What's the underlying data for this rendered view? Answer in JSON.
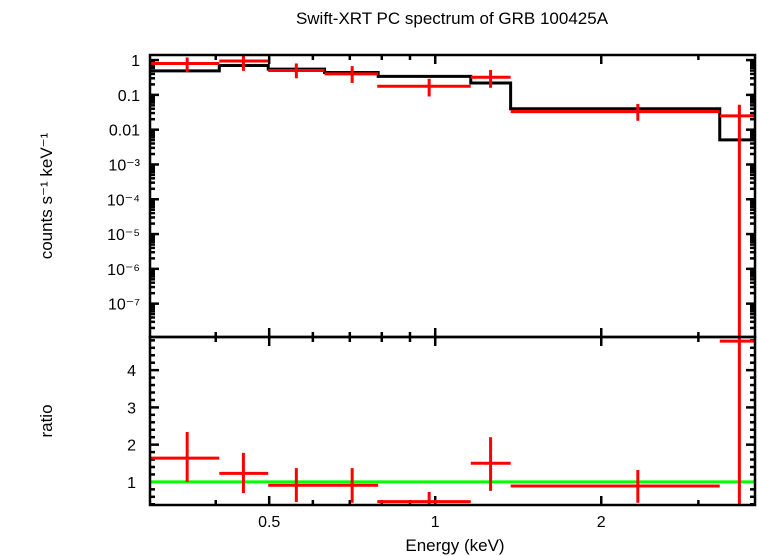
{
  "chart_data": [
    {
      "type": "scatter",
      "panel": "spectrum",
      "title": "Swift-XRT PC spectrum of GRB 100425A",
      "xlabel": "Energy (keV)",
      "ylabel": "counts s⁻¹ keV⁻¹",
      "xscale": "log",
      "yscale": "log",
      "xlim": [
        0.304,
        3.8
      ],
      "ylim": [
        1.1e-08,
        1.4
      ],
      "yticks": [
        {
          "value": 1,
          "label": "1"
        },
        {
          "value": 0.1,
          "label": "0.1"
        },
        {
          "value": 0.01,
          "label": "0.01"
        },
        {
          "value": 0.001,
          "label": "10⁻³"
        },
        {
          "value": 0.0001,
          "label": "10⁻⁴"
        },
        {
          "value": 1e-05,
          "label": "10⁻⁵"
        },
        {
          "value": 1e-06,
          "label": "10⁻⁶"
        },
        {
          "value": 1e-07,
          "label": "10⁻⁷"
        }
      ],
      "data_color": "#ff0000",
      "model_color": "#000000",
      "data": [
        {
          "elo": 0.304,
          "ehi": 0.406,
          "e": 0.355,
          "y": 0.8,
          "ylo": 0.45,
          "yhi": 1.19
        },
        {
          "elo": 0.406,
          "ehi": 0.498,
          "e": 0.449,
          "y": 0.94,
          "ylo": 0.49,
          "yhi": 1.39
        },
        {
          "elo": 0.498,
          "ehi": 0.63,
          "e": 0.56,
          "y": 0.5,
          "ylo": 0.3,
          "yhi": 0.8
        },
        {
          "elo": 0.63,
          "ehi": 0.788,
          "e": 0.707,
          "y": 0.4,
          "ylo": 0.22,
          "yhi": 0.67
        },
        {
          "elo": 0.785,
          "ehi": 1.16,
          "e": 0.975,
          "y": 0.177,
          "ylo": 0.09,
          "yhi": 0.29
        },
        {
          "elo": 1.16,
          "ehi": 1.37,
          "e": 1.26,
          "y": 0.32,
          "ylo": 0.16,
          "yhi": 0.52
        },
        {
          "elo": 1.37,
          "ehi": 3.28,
          "e": 2.33,
          "y": 0.033,
          "ylo": 0.018,
          "yhi": 0.055
        },
        {
          "elo": 3.28,
          "ehi": 3.9,
          "e": 3.56,
          "y": 0.025,
          "ylo": 1e-09,
          "yhi": 0.052
        }
      ],
      "model": [
        {
          "elo": 0.304,
          "ehi": 0.406,
          "y": 0.49
        },
        {
          "elo": 0.406,
          "ehi": 0.498,
          "y": 0.7
        },
        {
          "elo": 0.498,
          "ehi": 0.63,
          "y": 0.55
        },
        {
          "elo": 0.63,
          "ehi": 0.788,
          "y": 0.44
        },
        {
          "elo": 0.788,
          "ehi": 1.16,
          "y": 0.34
        },
        {
          "elo": 1.16,
          "ehi": 1.37,
          "y": 0.22
        },
        {
          "elo": 1.37,
          "ehi": 3.28,
          "y": 0.04
        },
        {
          "elo": 3.28,
          "ehi": 3.9,
          "y": 0.0051
        }
      ]
    },
    {
      "type": "scatter",
      "panel": "ratio",
      "xlabel": "Energy (keV)",
      "ylabel": "ratio",
      "xscale": "log",
      "yscale": "linear",
      "xlim": [
        0.304,
        3.8
      ],
      "ylim": [
        0.38,
        4.89
      ],
      "xticks": [
        {
          "value": 0.5,
          "label": "0.5"
        },
        {
          "value": 1,
          "label": "1"
        },
        {
          "value": 2,
          "label": "2"
        }
      ],
      "yticks": [
        {
          "value": 1,
          "label": "1"
        },
        {
          "value": 2,
          "label": "2"
        },
        {
          "value": 3,
          "label": "3"
        },
        {
          "value": 4,
          "label": "4"
        }
      ],
      "reference_line": {
        "y": 1,
        "color": "#00ff00"
      },
      "data_color": "#ff0000",
      "data": [
        {
          "elo": 0.304,
          "ehi": 0.406,
          "e": 0.355,
          "y": 1.64,
          "ylo": 1.0,
          "yhi": 2.34
        },
        {
          "elo": 0.406,
          "ehi": 0.498,
          "e": 0.449,
          "y": 1.23,
          "ylo": 0.7,
          "yhi": 1.78
        },
        {
          "elo": 0.498,
          "ehi": 0.63,
          "e": 0.56,
          "y": 0.91,
          "ylo": 0.46,
          "yhi": 1.37
        },
        {
          "elo": 0.63,
          "ehi": 0.788,
          "e": 0.707,
          "y": 0.91,
          "ylo": 0.44,
          "yhi": 1.37
        },
        {
          "elo": 0.785,
          "ehi": 1.16,
          "e": 0.975,
          "y": 0.47,
          "ylo": 0.25,
          "yhi": 0.73
        },
        {
          "elo": 1.16,
          "ehi": 1.37,
          "e": 1.26,
          "y": 1.5,
          "ylo": 0.76,
          "yhi": 2.2
        },
        {
          "elo": 1.37,
          "ehi": 3.28,
          "e": 2.33,
          "y": 0.89,
          "ylo": 0.44,
          "yhi": 1.32
        },
        {
          "elo": 3.28,
          "ehi": 3.9,
          "e": 3.56,
          "y": 4.78,
          "ylo": 0.0,
          "yhi": 6.0
        }
      ]
    }
  ]
}
